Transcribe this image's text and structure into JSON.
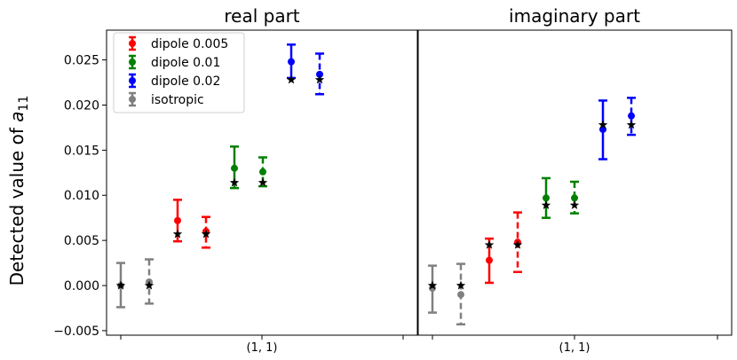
{
  "figure": {
    "ylabel_prefix": "Detected value of ",
    "ylabel_symbol": "a",
    "ylabel_subscript": "11"
  },
  "chart_data": [
    {
      "type": "scatter",
      "variant": "errorbar",
      "title": "real part",
      "xlabel": "",
      "ylabel": "Detected value of a_11",
      "x_tick_label": "(1, 1)",
      "ylim": [
        -0.0055,
        0.0283
      ],
      "yticks": [
        -0.005,
        0.0,
        0.005,
        0.01,
        0.015,
        0.02,
        0.025
      ],
      "ytick_labels": [
        "−0.005",
        "0.000",
        "0.005",
        "0.010",
        "0.015",
        "0.020",
        "0.025"
      ],
      "grid": false,
      "legend_position": "top-left",
      "series": [
        {
          "name": "isotropic",
          "color": "#808080",
          "points": [
            {
              "y": 0.0,
              "err_low": -0.0024,
              "err_high": 0.0025,
              "star": 0.0,
              "linestyle": "solid"
            },
            {
              "y": 0.0004,
              "err_low": -0.002,
              "err_high": 0.0029,
              "star": 0.0,
              "linestyle": "dashed"
            }
          ]
        },
        {
          "name": "dipole 0.005",
          "color": "#ff0000",
          "points": [
            {
              "y": 0.0072,
              "err_low": 0.0049,
              "err_high": 0.0095,
              "star": 0.0057,
              "linestyle": "solid"
            },
            {
              "y": 0.006,
              "err_low": 0.0042,
              "err_high": 0.0076,
              "star": 0.0057,
              "linestyle": "dashed"
            }
          ]
        },
        {
          "name": "dipole 0.01",
          "color": "#008000",
          "points": [
            {
              "y": 0.013,
              "err_low": 0.0108,
              "err_high": 0.0154,
              "star": 0.0114,
              "linestyle": "solid"
            },
            {
              "y": 0.0126,
              "err_low": 0.011,
              "err_high": 0.0142,
              "star": 0.0114,
              "linestyle": "dashed"
            }
          ]
        },
        {
          "name": "dipole 0.02",
          "color": "#0000ff",
          "points": [
            {
              "y": 0.0248,
              "err_low": 0.023,
              "err_high": 0.0267,
              "star": 0.0228,
              "linestyle": "solid"
            },
            {
              "y": 0.0234,
              "err_low": 0.0212,
              "err_high": 0.0257,
              "star": 0.0228,
              "linestyle": "dashed"
            }
          ]
        }
      ]
    },
    {
      "type": "scatter",
      "variant": "errorbar",
      "title": "imaginary part",
      "xlabel": "",
      "x_tick_label": "(1, 1)",
      "ylim": [
        -0.0055,
        0.0283
      ],
      "grid": false,
      "series": [
        {
          "name": "isotropic",
          "color": "#808080",
          "points": [
            {
              "y": -0.0003,
              "err_low": -0.003,
              "err_high": 0.0022,
              "star": 0.0,
              "linestyle": "solid"
            },
            {
              "y": -0.001,
              "err_low": -0.0043,
              "err_high": 0.0024,
              "star": 0.0,
              "linestyle": "dashed"
            }
          ]
        },
        {
          "name": "dipole 0.005",
          "color": "#ff0000",
          "points": [
            {
              "y": 0.0028,
              "err_low": 0.0003,
              "err_high": 0.0052,
              "star": 0.0045,
              "linestyle": "solid"
            },
            {
              "y": 0.0048,
              "err_low": 0.0015,
              "err_high": 0.0081,
              "star": 0.0045,
              "linestyle": "dashed"
            }
          ]
        },
        {
          "name": "dipole 0.01",
          "color": "#008000",
          "points": [
            {
              "y": 0.0097,
              "err_low": 0.0075,
              "err_high": 0.0119,
              "star": 0.0089,
              "linestyle": "solid"
            },
            {
              "y": 0.0097,
              "err_low": 0.008,
              "err_high": 0.0115,
              "star": 0.0089,
              "linestyle": "dashed"
            }
          ]
        },
        {
          "name": "dipole 0.02",
          "color": "#0000ff",
          "points": [
            {
              "y": 0.0173,
              "err_low": 0.014,
              "err_high": 0.0205,
              "star": 0.0178,
              "linestyle": "solid"
            },
            {
              "y": 0.0188,
              "err_low": 0.0167,
              "err_high": 0.0208,
              "star": 0.0178,
              "linestyle": "dashed"
            }
          ]
        }
      ]
    }
  ],
  "legend": [
    {
      "label": "dipole 0.005",
      "color": "#ff0000"
    },
    {
      "label": "dipole 0.01",
      "color": "#008000"
    },
    {
      "label": "dipole 0.02",
      "color": "#0000ff"
    },
    {
      "label": "isotropic",
      "color": "#808080"
    }
  ]
}
